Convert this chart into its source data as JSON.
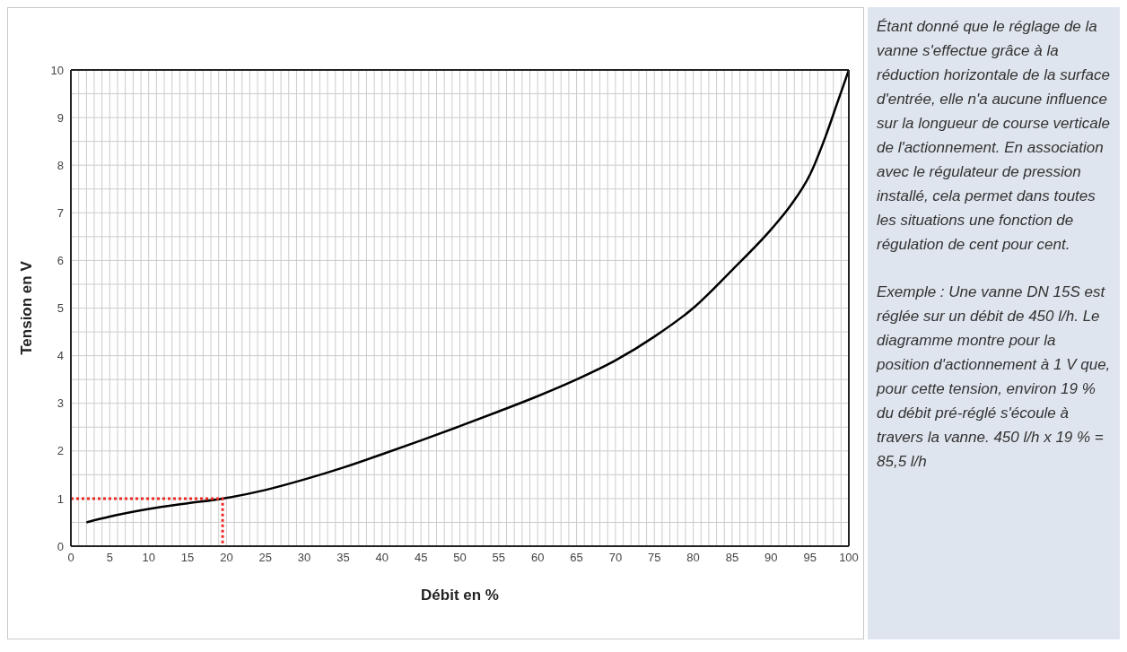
{
  "chart_data": {
    "type": "line",
    "xlabel": "Débit en %",
    "ylabel": "Tension en V",
    "xlim": [
      0,
      100
    ],
    "ylim": [
      0,
      10
    ],
    "xticks": [
      0,
      {
        "value": 1,
        "label": null
      },
      {
        "value": 2,
        "label": null
      },
      {
        "value": 3,
        "label": null
      },
      {
        "value": 4,
        "label": null
      },
      5,
      {
        "value": 6,
        "label": null
      },
      {
        "value": 7,
        "label": null
      },
      {
        "value": 8,
        "label": null
      },
      {
        "value": 9,
        "label": null
      },
      10,
      {
        "value": 11,
        "label": null
      },
      {
        "value": 12,
        "label": null
      },
      {
        "value": 13,
        "label": null
      },
      {
        "value": 14,
        "label": null
      },
      15,
      {
        "value": 16,
        "label": null
      },
      {
        "value": 17,
        "label": null
      },
      {
        "value": 18,
        "label": null
      },
      {
        "value": 19,
        "label": null
      },
      20,
      {
        "value": 21,
        "label": null
      },
      {
        "value": 22,
        "label": null
      },
      {
        "value": 23,
        "label": null
      },
      {
        "value": 24,
        "label": null
      },
      25,
      {
        "value": 26,
        "label": null
      },
      {
        "value": 27,
        "label": null
      },
      {
        "value": 28,
        "label": null
      },
      {
        "value": 29,
        "label": null
      },
      30,
      {
        "value": 31,
        "label": null
      },
      {
        "value": 32,
        "label": null
      },
      {
        "value": 33,
        "label": null
      },
      {
        "value": 34,
        "label": null
      },
      35,
      {
        "value": 36,
        "label": null
      },
      {
        "value": 37,
        "label": null
      },
      {
        "value": 38,
        "label": null
      },
      {
        "value": 39,
        "label": null
      },
      40,
      {
        "value": 41,
        "label": null
      },
      {
        "value": 42,
        "label": null
      },
      {
        "value": 43,
        "label": null
      },
      {
        "value": 44,
        "label": null
      },
      45,
      {
        "value": 46,
        "label": null
      },
      {
        "value": 47,
        "label": null
      },
      {
        "value": 48,
        "label": null
      },
      {
        "value": 49,
        "label": null
      },
      50,
      {
        "value": 51,
        "label": null
      },
      {
        "value": 52,
        "label": null
      },
      {
        "value": 53,
        "label": null
      },
      {
        "value": 54,
        "label": null
      },
      55,
      {
        "value": 56,
        "label": null
      },
      {
        "value": 57,
        "label": null
      },
      {
        "value": 58,
        "label": null
      },
      {
        "value": 59,
        "label": null
      },
      60,
      {
        "value": 61,
        "label": null
      },
      {
        "value": 62,
        "label": null
      },
      {
        "value": 63,
        "label": null
      },
      {
        "value": 64,
        "label": null
      },
      65,
      {
        "value": 66,
        "label": null
      },
      {
        "value": 67,
        "label": null
      },
      {
        "value": 68,
        "label": null
      },
      {
        "value": 69,
        "label": null
      },
      70,
      {
        "value": 71,
        "label": null
      },
      {
        "value": 72,
        "label": null
      },
      {
        "value": 73,
        "label": null
      },
      {
        "value": 74,
        "label": null
      },
      75,
      {
        "value": 76,
        "label": null
      },
      {
        "value": 77,
        "label": null
      },
      {
        "value": 78,
        "label": null
      },
      {
        "value": 79,
        "label": null
      },
      80,
      {
        "value": 81,
        "label": null
      },
      {
        "value": 82,
        "label": null
      },
      {
        "value": 83,
        "label": null
      },
      {
        "value": 84,
        "label": null
      },
      85,
      {
        "value": 86,
        "label": null
      },
      {
        "value": 87,
        "label": null
      },
      {
        "value": 88,
        "label": null
      },
      {
        "value": 89,
        "label": null
      },
      90,
      {
        "value": 91,
        "label": null
      },
      {
        "value": 92,
        "label": null
      },
      {
        "value": 93,
        "label": null
      },
      {
        "value": 94,
        "label": null
      },
      95,
      {
        "value": 96,
        "label": null
      },
      {
        "value": 97,
        "label": null
      },
      {
        "value": 98,
        "label": null
      },
      {
        "value": 99,
        "label": null
      },
      100
    ],
    "yticks": [
      0,
      {
        "value": 0.5,
        "label": null
      },
      1,
      {
        "value": 1.5,
        "label": null
      },
      2,
      {
        "value": 2.5,
        "label": null
      },
      3,
      {
        "value": 3.5,
        "label": null
      },
      4,
      {
        "value": 4.5,
        "label": null
      },
      5,
      {
        "value": 5.5,
        "label": null
      },
      6,
      {
        "value": 6.5,
        "label": null
      },
      7,
      {
        "value": 7.5,
        "label": null
      },
      8,
      {
        "value": 8.5,
        "label": null
      },
      9,
      {
        "value": 9.5,
        "label": null
      },
      10
    ],
    "grid": true,
    "marker": "none",
    "series": [
      {
        "color": "#000000",
        "line_style": "solid",
        "x": [
          2,
          5,
          10,
          15,
          19.5,
          25,
          30,
          35,
          40,
          45,
          50,
          55,
          60,
          65,
          70,
          75,
          80,
          85,
          90,
          92.5,
          95,
          97,
          98.5,
          100
        ],
        "values": [
          0.5,
          0.62,
          0.78,
          0.9,
          1.0,
          1.18,
          1.4,
          1.65,
          1.93,
          2.22,
          2.52,
          2.83,
          3.15,
          3.5,
          3.9,
          4.4,
          5.0,
          5.8,
          6.65,
          7.15,
          7.8,
          8.6,
          9.3,
          10
        ]
      },
      {
        "color": "#ee2a24",
        "line_style": "dotted",
        "x": [
          0,
          19.5,
          19.5
        ],
        "values": [
          1,
          1,
          0
        ]
      }
    ],
    "annotations": [
      "Étant donné que le réglage de la vanne s'effectue grâce à la réduction horizontale de la surface d'entrée, elle n'a aucune influence sur la longueur de course verticale de l'actionnement. En association avec le régulateur de pression installé, cela permet dans toutes les situations une fonction de régulation de cent pour cent.",
      "Exemple : Une vanne DN 15S est réglée sur un débit de 450 l/h. Le diagramme montre pour la position d'actionnement à 1 V que, pour cette tension, environ 19 % du débit pré-réglé s'écoule à travers la vanne. 450 l/h x 19 % = 85,5 l/h"
    ]
  }
}
